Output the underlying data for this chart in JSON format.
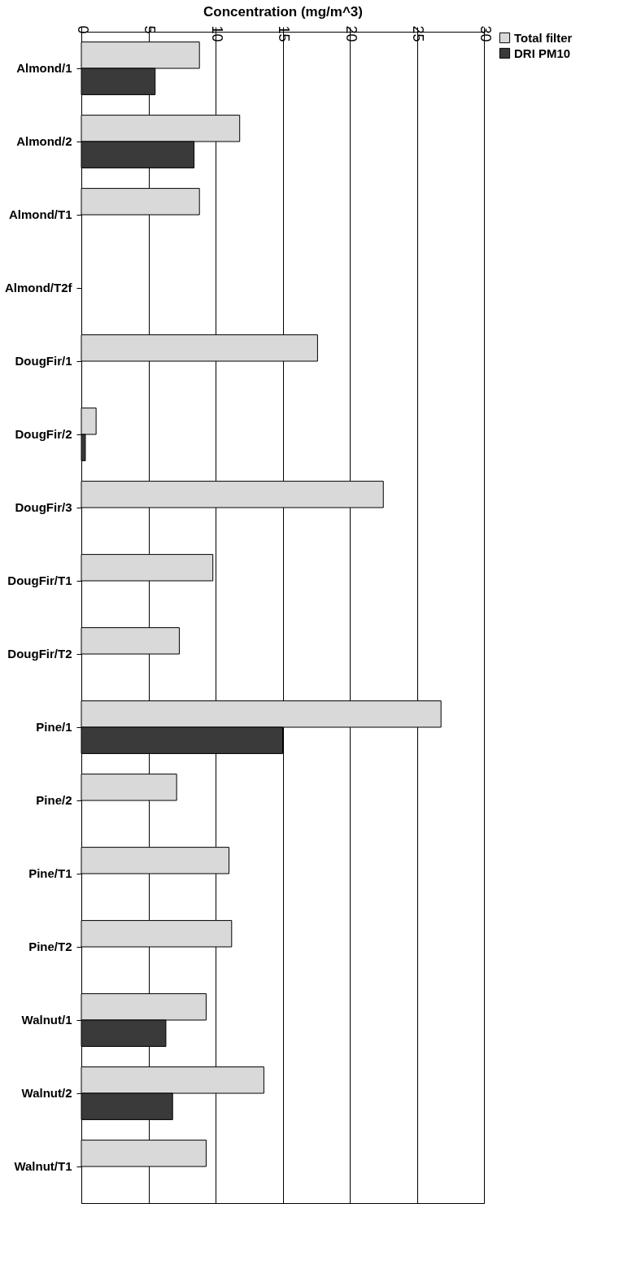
{
  "chart_data": {
    "type": "bar",
    "orientation": "horizontal",
    "xlabel": "Concentration (mg/m^3)",
    "categories": [
      "Almond/1",
      "Almond/2",
      "Almond/T1",
      "Almond/T2f",
      "DougFir/1",
      "DougFir/2",
      "DougFir/3",
      "DougFir/T1",
      "DougFir/T2",
      "Pine/1",
      "Pine/2",
      "Pine/T1",
      "Pine/T2",
      "Walnut/1",
      "Walnut/2",
      "Walnut/T1"
    ],
    "series": [
      {
        "name": "Total filter",
        "color": "#d9d9d9",
        "values": [
          8.8,
          11.8,
          8.8,
          null,
          17.6,
          1.1,
          22.5,
          9.8,
          7.3,
          26.8,
          7.1,
          11.0,
          11.2,
          9.3,
          13.6,
          9.3
        ]
      },
      {
        "name": "DRI PM10",
        "color": "#3a3a3a",
        "values": [
          5.5,
          8.4,
          null,
          null,
          null,
          0.3,
          null,
          null,
          null,
          15.0,
          null,
          null,
          null,
          6.3,
          6.8,
          null
        ]
      }
    ],
    "xlim": [
      0,
      30
    ],
    "xticks": [
      0,
      5,
      10,
      15,
      20,
      25,
      30
    ],
    "grid": "x",
    "legend": "right"
  }
}
